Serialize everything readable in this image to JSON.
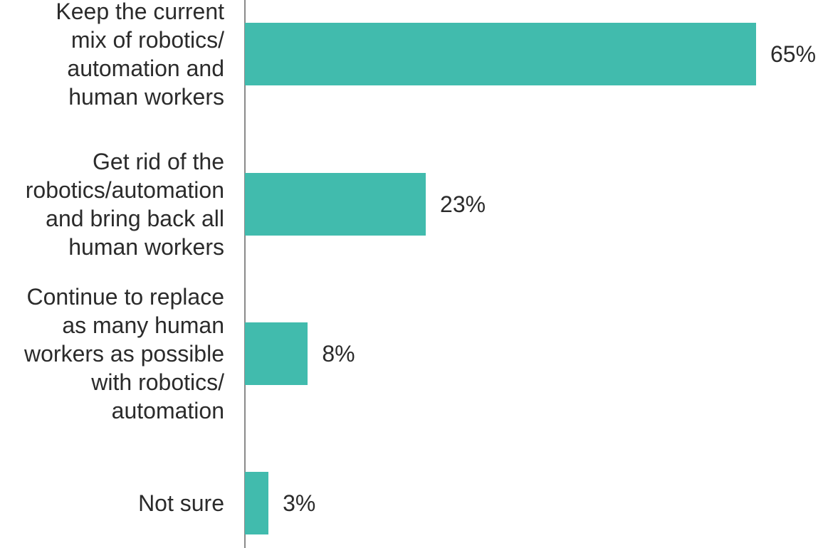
{
  "chart_data": {
    "type": "bar",
    "orientation": "horizontal",
    "categories": [
      "Keep the current\nmix of robotics/\nautomation and\nhuman workers",
      "Get rid of the\nrobotics/automation\nand bring back all\nhuman workers",
      "Continue to replace\nas many human\nworkers as possible\nwith robotics/\nautomation",
      "Not sure"
    ],
    "values": [
      65,
      23,
      8,
      3
    ],
    "value_labels": [
      "65%",
      "23%",
      "8%",
      "3%"
    ],
    "unit": "%",
    "xlim": [
      0,
      65
    ],
    "grid": false,
    "bar_color": "#41bbad",
    "text_color": "#2b2b2b",
    "axis_color": "#8a8a8a"
  }
}
